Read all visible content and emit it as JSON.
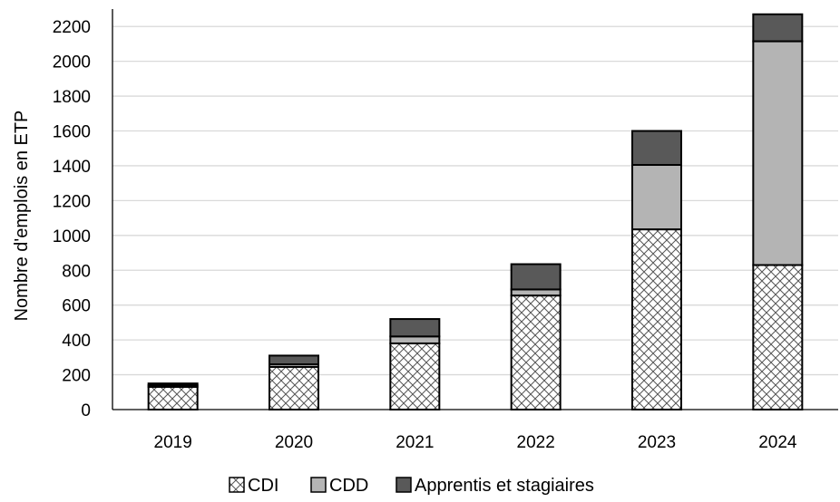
{
  "chart_data": {
    "type": "bar",
    "stacked": true,
    "categories": [
      "2019",
      "2020",
      "2021",
      "2022",
      "2023",
      "2024"
    ],
    "series": [
      {
        "name": "CDI",
        "values": [
          130,
          245,
          380,
          655,
          1035,
          830
        ],
        "color": "#ffffff",
        "pattern": "crosshatch"
      },
      {
        "name": "CDD",
        "values": [
          10,
          15,
          40,
          35,
          370,
          1285
        ],
        "color": "#b4b4b4",
        "pattern": "solid"
      },
      {
        "name": "Apprentis et stagiaires",
        "values": [
          10,
          50,
          100,
          145,
          195,
          155
        ],
        "color": "#595959",
        "pattern": "solid"
      }
    ],
    "title": "",
    "xlabel": "",
    "ylabel": "Nombre d'emplois en ETP",
    "ylim": [
      0,
      2300
    ],
    "yticks": [
      0,
      200,
      400,
      600,
      800,
      1000,
      1200,
      1400,
      1600,
      1800,
      2000,
      2200
    ],
    "grid": true,
    "legend_position": "bottom"
  }
}
